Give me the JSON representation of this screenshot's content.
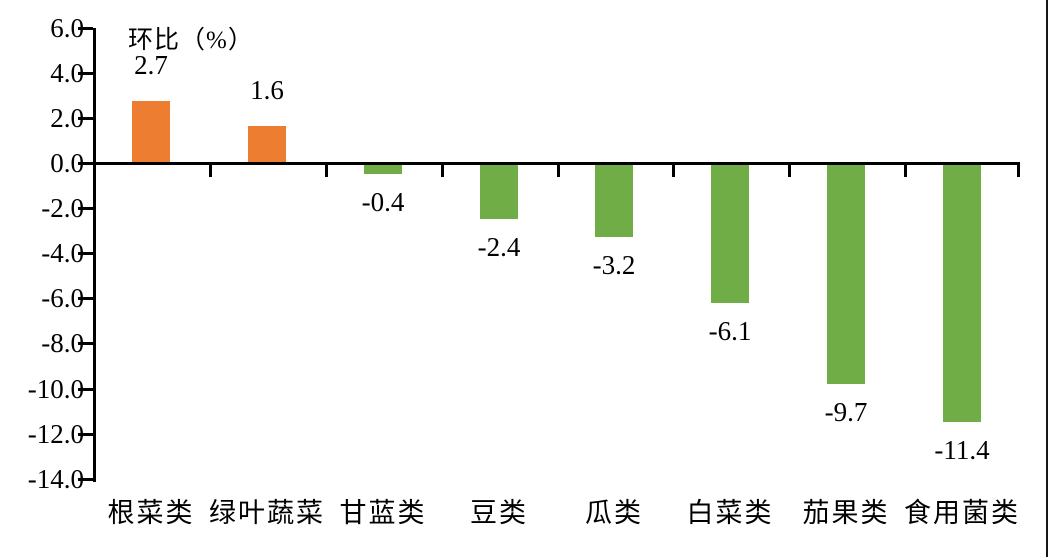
{
  "chart_data": {
    "type": "bar",
    "title": "环比（%）",
    "categories": [
      "根菜类",
      "绿叶蔬菜",
      "甘蓝类",
      "豆类",
      "瓜类",
      "白菜类",
      "茄果类",
      "食用菌类"
    ],
    "values": [
      2.7,
      1.6,
      -0.4,
      -2.4,
      -3.2,
      -6.1,
      -9.7,
      -11.4
    ],
    "data_labels": [
      "2.7",
      "1.6",
      "-0.4",
      "-2.4",
      "-3.2",
      "-6.1",
      "-9.7",
      "-11.4"
    ],
    "bar_colors": [
      "#ED7D31",
      "#ED7D31",
      "#70AD47",
      "#70AD47",
      "#70AD47",
      "#70AD47",
      "#70AD47",
      "#70AD47"
    ],
    "positive_color": "#ED7D31",
    "negative_color": "#70AD47",
    "axis_color": "#000000",
    "ylabel": "环比（%）",
    "xlabel": "",
    "ylim": [
      -14.0,
      6.0
    ],
    "y_tick_labels": [
      "6.0",
      "4.0",
      "2.0",
      "0.0",
      "-2.0",
      "-4.0",
      "-6.0",
      "-8.0",
      "-10.0",
      "-12.0",
      "-14.0"
    ],
    "y_tick_values": [
      6,
      4,
      2,
      0,
      -2,
      -4,
      -6,
      -8,
      -10,
      -12,
      -14
    ],
    "grid": false,
    "legend": "none",
    "data_label_position": "outside-end"
  }
}
